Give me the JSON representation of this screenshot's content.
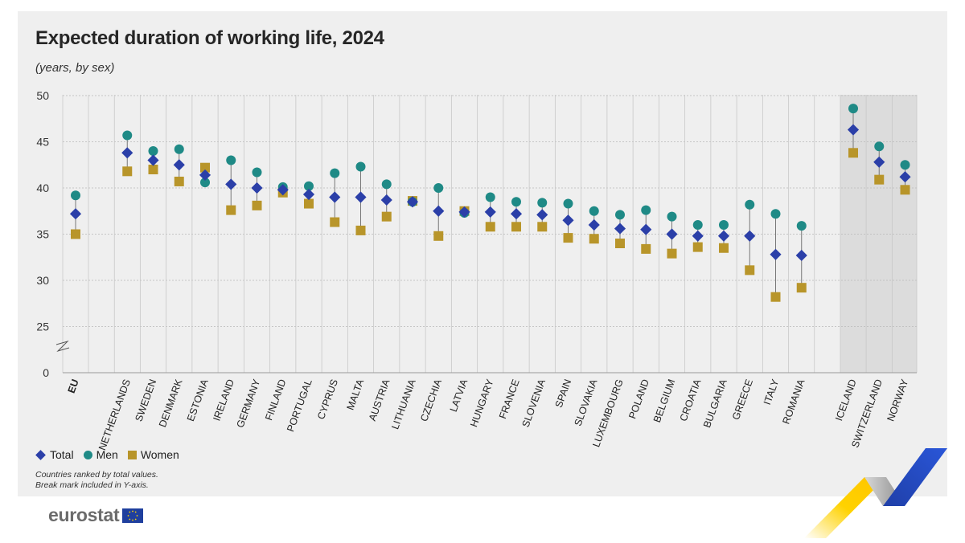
{
  "header": {
    "title": "Expected duration of working life, 2024",
    "subtitle": "(years, by sex)"
  },
  "legend": {
    "total": "Total",
    "men": "Men",
    "women": "Women"
  },
  "notes": {
    "line1": "Countries ranked by total values.",
    "line2": "Break mark included in Y-axis."
  },
  "logo": {
    "text": "eurostat"
  },
  "colors": {
    "total": "#2b3fa8",
    "men": "#1f8a86",
    "women": "#b8952a"
  },
  "chart_data": {
    "type": "scatter",
    "title": "Expected duration of working life, 2024",
    "ylabel": "years",
    "ylim": [
      0,
      50
    ],
    "y_axis_break": true,
    "yticks": [
      0,
      25,
      30,
      35,
      40,
      45,
      50
    ],
    "grid": true,
    "legend_position": "bottom-left",
    "categories": [
      "EU",
      "NETHERLANDS",
      "SWEDEN",
      "DENMARK",
      "ESTONIA",
      "IRELAND",
      "GERMANY",
      "FINLAND",
      "PORTUGAL",
      "CYPRUS",
      "MALTA",
      "AUSTRIA",
      "LITHUANIA",
      "CZECHIA",
      "LATVIA",
      "HUNGARY",
      "FRANCE",
      "SLOVENIA",
      "SPAIN",
      "SLOVAKIA",
      "LUXEMBOURG",
      "POLAND",
      "BELGIUM",
      "CROATIA",
      "BULGARIA",
      "GREECE",
      "ITALY",
      "ROMANIA",
      "ICELAND",
      "SWITZERLAND",
      "NORWAY"
    ],
    "series": [
      {
        "name": "Total",
        "values": [
          37.2,
          43.8,
          43.0,
          42.5,
          41.4,
          40.4,
          40.0,
          39.8,
          39.3,
          39.0,
          39.0,
          38.7,
          38.5,
          37.5,
          37.4,
          37.4,
          37.2,
          37.1,
          36.5,
          36.0,
          35.6,
          35.5,
          35.0,
          34.8,
          34.8,
          34.8,
          32.8,
          32.7,
          46.3,
          42.8,
          41.2
        ]
      },
      {
        "name": "Men",
        "values": [
          39.2,
          45.7,
          44.0,
          44.2,
          40.6,
          43.0,
          41.7,
          40.1,
          40.2,
          41.6,
          42.3,
          40.4,
          38.5,
          40.0,
          37.3,
          39.0,
          38.5,
          38.4,
          38.3,
          37.5,
          37.1,
          37.6,
          36.9,
          36.0,
          36.0,
          38.2,
          37.2,
          35.9,
          48.6,
          44.5,
          42.5
        ]
      },
      {
        "name": "Women",
        "values": [
          35.0,
          41.8,
          42.0,
          40.7,
          42.2,
          37.6,
          38.1,
          39.5,
          38.3,
          36.3,
          35.4,
          36.9,
          38.6,
          34.8,
          37.5,
          35.8,
          35.8,
          35.8,
          34.6,
          34.5,
          34.0,
          33.4,
          32.9,
          33.6,
          33.5,
          31.1,
          28.2,
          29.2,
          43.8,
          40.9,
          39.8
        ]
      }
    ]
  }
}
